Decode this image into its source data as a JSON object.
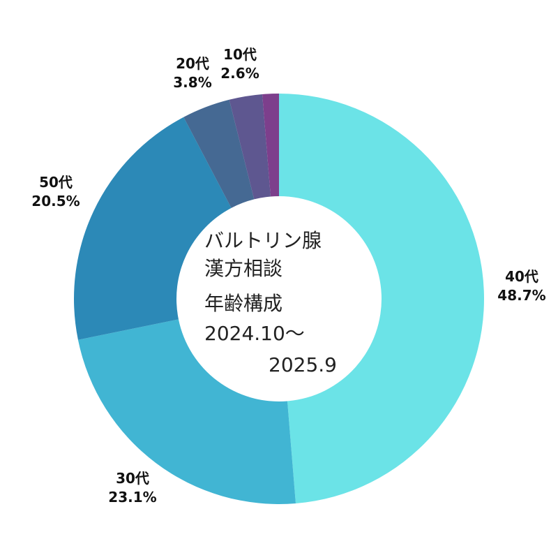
{
  "chart_data": {
    "type": "pie",
    "variant": "donut",
    "title_lines": [
      "バルトリン腺",
      "漢方相談",
      "年齢構成",
      "2024.10～",
      "2025.9"
    ],
    "start_angle_deg": 0,
    "direction": "clockwise",
    "slices": [
      {
        "label": "40代",
        "percent_text": "48.7%",
        "value": 48.7,
        "color": "#6BE3E7"
      },
      {
        "label": "30代",
        "percent_text": "23.1%",
        "value": 23.1,
        "color": "#41B5D3"
      },
      {
        "label": "50代",
        "percent_text": "20.5%",
        "value": 20.5,
        "color": "#2C89B7"
      },
      {
        "label": "20代",
        "percent_text": "3.8%",
        "value": 3.8,
        "color": "#456993"
      },
      {
        "label": "10代",
        "percent_text": "2.6%",
        "value": 2.6,
        "color": "#5E5790"
      },
      {
        "label": "",
        "percent_text": "",
        "value": 1.3,
        "color": "#7D3F8C"
      }
    ]
  }
}
